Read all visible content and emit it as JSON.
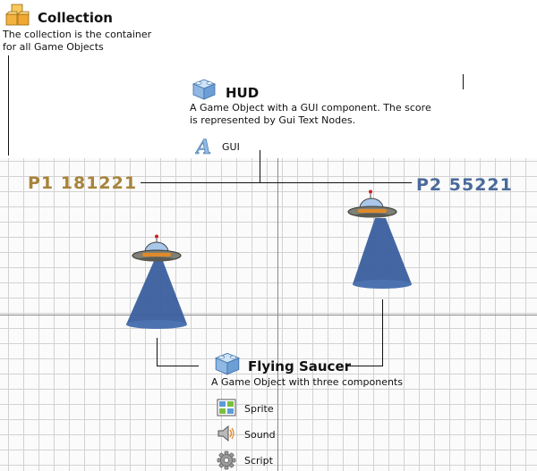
{
  "collection": {
    "title": "Collection",
    "desc_line1": "The collection is the container",
    "desc_line2": "for all Game Objects",
    "icon": "collection-icon"
  },
  "hud": {
    "title": "HUD",
    "desc_line1": "A Game Object with a GUI component. The score",
    "desc_line2": "is represented by Gui Text Nodes.",
    "icon": "game-object-icon",
    "component": {
      "label": "GUI",
      "icon": "gui-font-icon"
    }
  },
  "scores": {
    "p1": {
      "text": "P1 181221",
      "color": "#a8833a"
    },
    "p2": {
      "text": "P2 55221",
      "color": "#4a6a9a"
    }
  },
  "saucer": {
    "title": "Flying Saucer",
    "desc": "A Game Object with three components",
    "icon": "game-object-icon",
    "components": [
      {
        "label": "Sprite",
        "icon": "sprite-icon"
      },
      {
        "label": "Sound",
        "icon": "speaker-icon"
      },
      {
        "label": "Script",
        "icon": "gear-icon"
      }
    ]
  },
  "colors": {
    "beam": "#3a5f9e",
    "saucer_dome": "#a9c7e8",
    "saucer_body": "#7f7f73",
    "saucer_band": "#e08a2a",
    "grid_line": "#d2d2d2"
  }
}
